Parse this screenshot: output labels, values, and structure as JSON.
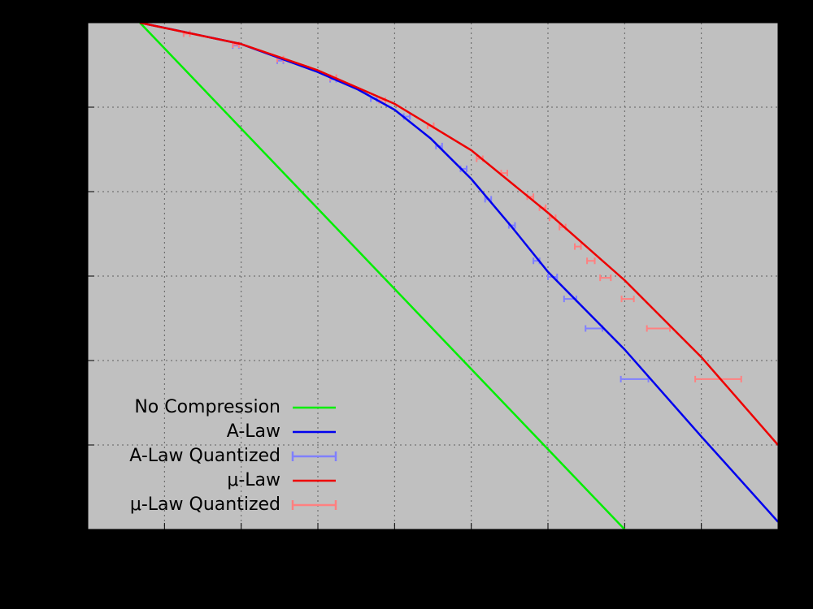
{
  "chart_data": {
    "type": "line",
    "xlim": [
      0,
      9
    ],
    "ylim": [
      0,
      6
    ],
    "xticks": [
      0,
      1,
      2,
      3,
      4,
      5,
      6,
      7,
      8,
      9
    ],
    "yticks": [
      0,
      1,
      2,
      3,
      4,
      5,
      6
    ],
    "grid": true,
    "legend": "lower left",
    "series": [
      {
        "name": "No Compression",
        "color": "#00ee00",
        "kind": "line",
        "x": [
          0.68,
          7.0
        ],
        "values": [
          6.0,
          0.0
        ]
      },
      {
        "name": "A-Law",
        "color": "#0000ee",
        "kind": "line",
        "x": [
          0.68,
          1.0,
          1.99,
          2.99,
          3.52,
          4.0,
          4.47,
          5.0,
          5.53,
          6.0,
          7.0,
          7.99,
          9.0
        ],
        "values": [
          6.0,
          5.94,
          5.75,
          5.42,
          5.21,
          4.97,
          4.63,
          4.15,
          3.58,
          3.05,
          2.13,
          1.11,
          0.09
        ]
      },
      {
        "name": "A-Law Quantized",
        "color": "#8080ff",
        "kind": "errorbar",
        "x": [
          1.29,
          1.93,
          2.51,
          3.2,
          3.73,
          4.16,
          4.58,
          4.9,
          5.22,
          5.53,
          5.85,
          6.06,
          6.29,
          6.6,
          7.13
        ],
        "values": [
          5.87,
          5.73,
          5.55,
          5.33,
          5.1,
          4.89,
          4.54,
          4.27,
          3.91,
          3.6,
          3.18,
          2.99,
          2.73,
          2.38,
          1.78
        ],
        "xerr": [
          0.04,
          0.04,
          0.04,
          0.04,
          0.04,
          0.04,
          0.04,
          0.04,
          0.04,
          0.04,
          0.04,
          0.06,
          0.08,
          0.11,
          0.18
        ]
      },
      {
        "name": "μ-Law",
        "color": "#ee0000",
        "kind": "line",
        "x": [
          0.68,
          1.99,
          2.99,
          4.0,
          5.0,
          6.0,
          7.0,
          8.0,
          9.0
        ],
        "values": [
          6.0,
          5.75,
          5.44,
          5.04,
          4.49,
          3.75,
          2.95,
          2.04,
          1.0
        ]
      },
      {
        "name": "μ-Law Quantized",
        "color": "#ff8080",
        "kind": "errorbar",
        "x": [
          1.29,
          1.93,
          2.51,
          3.2,
          3.84,
          4.47,
          5.11,
          5.43,
          5.77,
          5.93,
          6.06,
          6.19,
          6.39,
          6.56,
          6.75,
          7.04,
          7.44,
          8.22
        ],
        "values": [
          5.87,
          5.74,
          5.57,
          5.35,
          5.08,
          4.78,
          4.39,
          4.22,
          3.94,
          3.81,
          3.69,
          3.58,
          3.35,
          3.18,
          2.98,
          2.73,
          2.38,
          1.78
        ],
        "xerr": [
          0.04,
          0.04,
          0.04,
          0.04,
          0.04,
          0.04,
          0.04,
          0.04,
          0.04,
          0.04,
          0.04,
          0.04,
          0.04,
          0.05,
          0.07,
          0.08,
          0.15,
          0.3
        ]
      }
    ]
  }
}
